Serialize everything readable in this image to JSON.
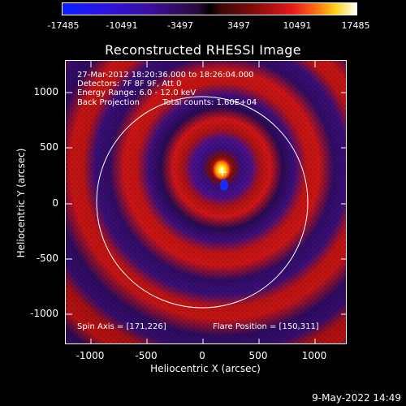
{
  "colorbar": {
    "ticks": [
      "-17485",
      "-10491",
      "-3497",
      "3497",
      "10491",
      "17485"
    ]
  },
  "plot": {
    "title": "Reconstructed RHESSI Image",
    "xlabel": "Heliocentric X (arcsec)",
    "ylabel": "Heliocentric Y (arcsec)",
    "xticks": [
      "-1000",
      "-500",
      "0",
      "500",
      "1000"
    ],
    "yticks": [
      "1000",
      "500",
      "0",
      "-500",
      "-1000"
    ]
  },
  "info": {
    "line1": "27-Mar-2012 18:20:36.000 to 18:26:04.000",
    "line2": "Detectors: 7F 8F 9F, Att 0",
    "line3": "Energy Range: 6.0 - 12.0 keV",
    "line4a": "Back Projection",
    "line4b": "Total counts: 1.60E+04"
  },
  "footer": {
    "spin_axis": "Spin Axis = [171,226]",
    "flare_position": "Flare Position = [150,311]"
  },
  "timestamp": "9-May-2022 14:49",
  "colors": {
    "background": "#000000",
    "ring_red": "#d81414",
    "ring_purple": "#3a1070",
    "core_yellow": "#ffe000",
    "core_blue": "#1a2aff"
  }
}
